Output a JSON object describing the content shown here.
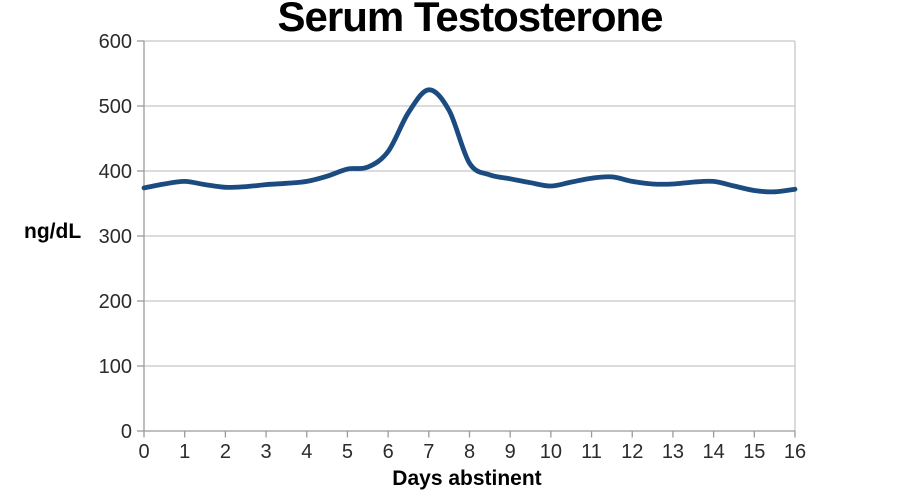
{
  "chart_data": {
    "type": "line",
    "title": "Serum Testosterone",
    "xlabel": "Days abstinent",
    "ylabel": "ng/dL",
    "xlim": [
      0,
      16
    ],
    "ylim": [
      0,
      600
    ],
    "x_ticks": [
      0,
      1,
      2,
      3,
      4,
      5,
      6,
      7,
      8,
      9,
      10,
      11,
      12,
      13,
      14,
      15,
      16
    ],
    "y_ticks": [
      0,
      100,
      200,
      300,
      400,
      500,
      600
    ],
    "grid": "horizontal",
    "legend": "none",
    "colors": {
      "line": "#1B4B80",
      "gridline": "#c7c7c7",
      "axis": "#9b9b9b",
      "tick_label": "#2b2b2b",
      "title": "#000000"
    },
    "series": [
      {
        "name": "Serum Testosterone",
        "x": [
          0,
          0.5,
          1,
          1.5,
          2,
          2.5,
          3,
          3.5,
          4,
          4.5,
          5,
          5.5,
          6,
          6.5,
          7,
          7.5,
          8,
          8.5,
          9,
          9.5,
          10,
          10.5,
          11,
          11.5,
          12,
          12.5,
          13,
          13.5,
          14,
          14.5,
          15,
          15.5,
          16
        ],
        "y": [
          374,
          380,
          384,
          379,
          375,
          376,
          379,
          381,
          384,
          392,
          403,
          406,
          430,
          490,
          525,
          493,
          412,
          394,
          388,
          382,
          377,
          383,
          389,
          391,
          384,
          380,
          380,
          383,
          384,
          377,
          370,
          368,
          372
        ]
      }
    ],
    "peak": {
      "x": 7,
      "y": 525
    },
    "baseline_range": [
      368,
      406
    ]
  }
}
